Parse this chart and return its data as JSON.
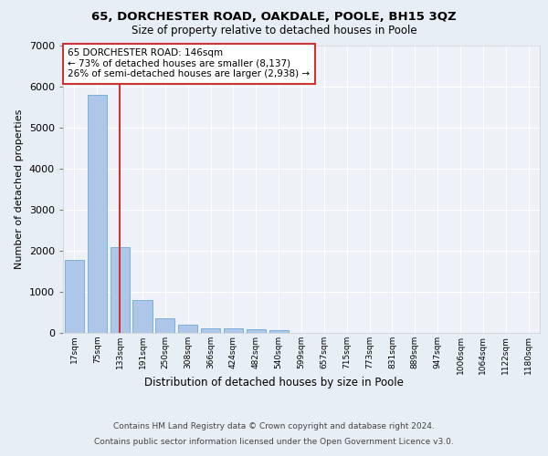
{
  "title1": "65, DORCHESTER ROAD, OAKDALE, POOLE, BH15 3QZ",
  "title2": "Size of property relative to detached houses in Poole",
  "xlabel": "Distribution of detached houses by size in Poole",
  "ylabel": "Number of detached properties",
  "bar_labels": [
    "17sqm",
    "75sqm",
    "133sqm",
    "191sqm",
    "250sqm",
    "308sqm",
    "366sqm",
    "424sqm",
    "482sqm",
    "540sqm",
    "599sqm",
    "657sqm",
    "715sqm",
    "773sqm",
    "831sqm",
    "889sqm",
    "947sqm",
    "1006sqm",
    "1064sqm",
    "1122sqm",
    "1180sqm"
  ],
  "bar_values": [
    1780,
    5800,
    2080,
    800,
    350,
    190,
    120,
    110,
    95,
    75,
    0,
    0,
    0,
    0,
    0,
    0,
    0,
    0,
    0,
    0,
    0
  ],
  "bar_color": "#aec6e8",
  "bar_edge_color": "#5a9fd4",
  "highlight_color": "#cc3333",
  "vline_x": 2,
  "annotation_text": "65 DORCHESTER ROAD: 146sqm\n← 73% of detached houses are smaller (8,137)\n26% of semi-detached houses are larger (2,938) →",
  "annotation_box_color": "#ffffff",
  "annotation_box_edge": "#cc3333",
  "ylim": [
    0,
    7000
  ],
  "yticks": [
    0,
    1000,
    2000,
    3000,
    4000,
    5000,
    6000,
    7000
  ],
  "footer1": "Contains HM Land Registry data © Crown copyright and database right 2024.",
  "footer2": "Contains public sector information licensed under the Open Government Licence v3.0.",
  "bg_color": "#e8eef5",
  "plot_bg_color": "#eef2f8"
}
